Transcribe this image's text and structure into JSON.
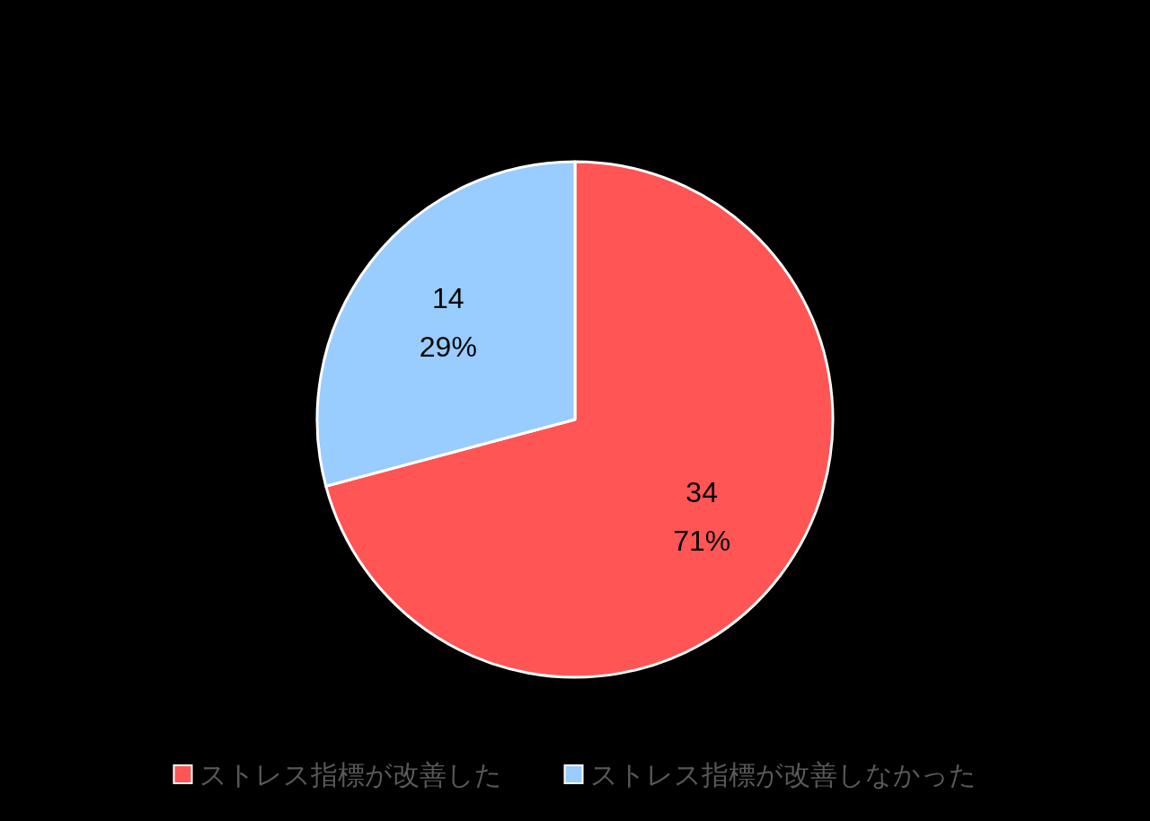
{
  "chart_data": {
    "type": "pie",
    "categories": [
      "ストレス指標が改善した",
      "ストレス指標が改善しなかった"
    ],
    "values": [
      34,
      14
    ],
    "colors": [
      "#ff5555",
      "#99ccff"
    ],
    "value_labels": [
      "34\n71%",
      "14\n29%"
    ],
    "legend": "bottom"
  }
}
